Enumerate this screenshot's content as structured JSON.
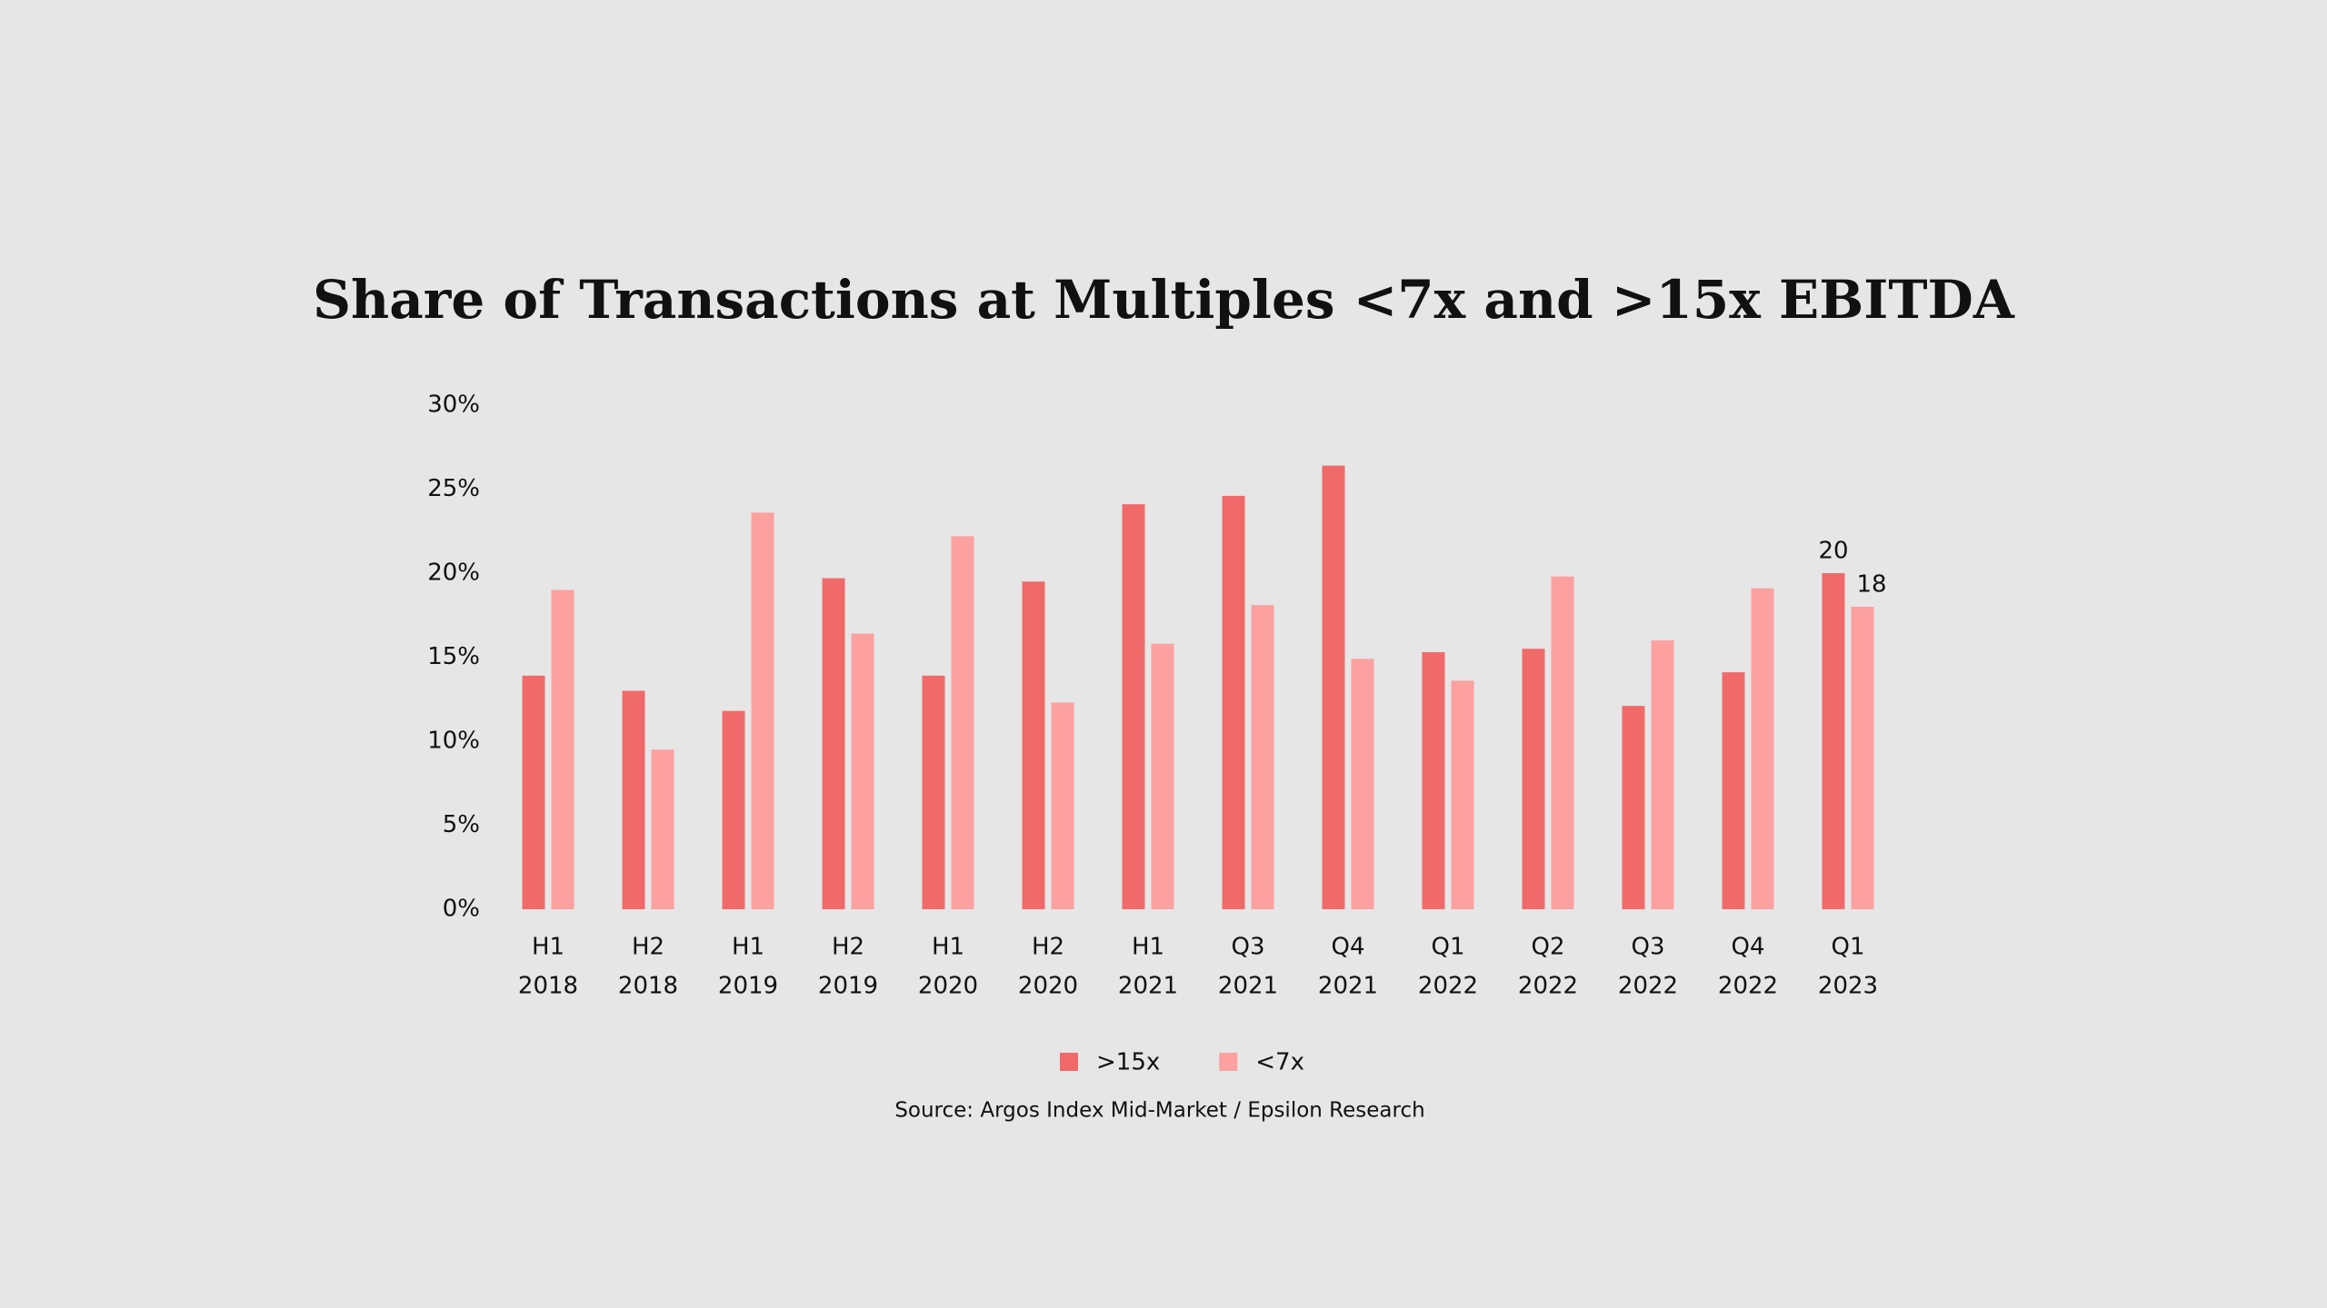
{
  "chart_data": {
    "type": "bar",
    "title": "Share of Transactions at Multiples <7x and >15x EBITDA",
    "source": "Source: Argos Index Mid-Market / Epsilon Research",
    "categories": [
      [
        "H1",
        "2018"
      ],
      [
        "H2",
        "2018"
      ],
      [
        "H1",
        "2019"
      ],
      [
        "H2",
        "2019"
      ],
      [
        "H1",
        "2020"
      ],
      [
        "H2",
        "2020"
      ],
      [
        "H1",
        "2021"
      ],
      [
        "Q3",
        "2021"
      ],
      [
        "Q4",
        "2021"
      ],
      [
        "Q1",
        "2022"
      ],
      [
        "Q2",
        "2022"
      ],
      [
        "Q3",
        "2022"
      ],
      [
        "Q4",
        "2022"
      ],
      [
        "Q1",
        "2023"
      ]
    ],
    "series": [
      {
        "name": ">15x",
        "color": "#f06a6a",
        "values": [
          13.9,
          13.0,
          11.8,
          19.7,
          13.9,
          19.5,
          24.1,
          24.6,
          26.4,
          15.3,
          15.5,
          12.1,
          14.1,
          20.0
        ],
        "value_labels": [
          null,
          null,
          null,
          null,
          null,
          null,
          null,
          null,
          null,
          null,
          null,
          null,
          null,
          "20"
        ]
      },
      {
        "name": "<7x",
        "color": "#fca0a0",
        "values": [
          19.0,
          9.5,
          23.6,
          16.4,
          22.2,
          12.3,
          15.8,
          18.1,
          14.9,
          13.6,
          19.8,
          16.0,
          19.1,
          18.0
        ],
        "value_labels": [
          null,
          null,
          null,
          null,
          null,
          null,
          null,
          null,
          null,
          null,
          null,
          null,
          null,
          "18"
        ]
      }
    ],
    "ylim": [
      0,
      30
    ],
    "yticks": [
      {
        "value": 0,
        "label": "0%"
      },
      {
        "value": 5,
        "label": "5%"
      },
      {
        "value": 10,
        "label": "10%"
      },
      {
        "value": 15,
        "label": "15%"
      },
      {
        "value": 20,
        "label": "20%"
      },
      {
        "value": 25,
        "label": "25%"
      },
      {
        "value": 30,
        "label": "30%"
      }
    ],
    "grid": false,
    "legend": "bottom"
  }
}
